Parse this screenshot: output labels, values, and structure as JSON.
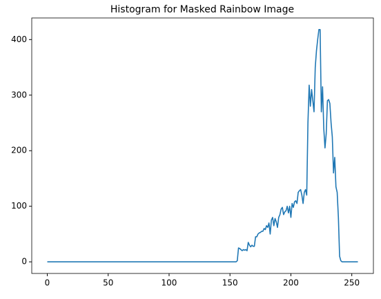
{
  "chart_data": {
    "type": "line",
    "title": "Histogram for Masked Rainbow Image",
    "x": [
      0,
      155,
      156,
      157,
      158,
      159,
      160,
      161,
      162,
      163,
      164,
      165,
      166,
      167,
      168,
      169,
      170,
      171,
      172,
      173,
      174,
      175,
      176,
      177,
      178,
      179,
      180,
      181,
      182,
      183,
      184,
      185,
      186,
      187,
      188,
      189,
      190,
      191,
      192,
      193,
      194,
      195,
      196,
      197,
      198,
      199,
      200,
      201,
      202,
      203,
      204,
      205,
      206,
      207,
      208,
      209,
      210,
      211,
      212,
      213,
      214,
      215,
      216,
      217,
      218,
      219,
      220,
      221,
      222,
      223,
      224,
      225,
      226,
      227,
      228,
      229,
      230,
      231,
      232,
      233,
      234,
      235,
      236,
      237,
      238,
      239,
      240,
      241,
      242,
      243,
      244,
      245,
      246,
      247,
      248,
      249,
      250,
      251,
      252,
      253,
      254,
      255
    ],
    "series": [
      {
        "color": "#1f77b4",
        "values": [
          0,
          0,
          2,
          25,
          24,
          22,
          20,
          22,
          21,
          22,
          20,
          35,
          30,
          27,
          30,
          28,
          28,
          45,
          45,
          50,
          52,
          53,
          55,
          55,
          60,
          58,
          65,
          62,
          70,
          50,
          75,
          80,
          65,
          78,
          72,
          62,
          80,
          85,
          95,
          98,
          85,
          90,
          92,
          100,
          88,
          100,
          80,
          105,
          98,
          108,
          110,
          105,
          125,
          128,
          130,
          120,
          105,
          125,
          130,
          120,
          250,
          318,
          280,
          310,
          290,
          270,
          350,
          380,
          400,
          418,
          418,
          270,
          315,
          240,
          205,
          230,
          290,
          292,
          285,
          250,
          225,
          160,
          188,
          135,
          125,
          80,
          10,
          2,
          0,
          0,
          0,
          0,
          0,
          0,
          0,
          0,
          0,
          0,
          0,
          0,
          0,
          0
        ]
      }
    ],
    "xlim": [
      -12.75,
      267.75
    ],
    "ylim": [
      -20.9,
      438.9
    ],
    "xticks": [
      0,
      50,
      100,
      150,
      200,
      250
    ],
    "yticks": [
      0,
      100,
      200,
      300,
      400
    ]
  }
}
